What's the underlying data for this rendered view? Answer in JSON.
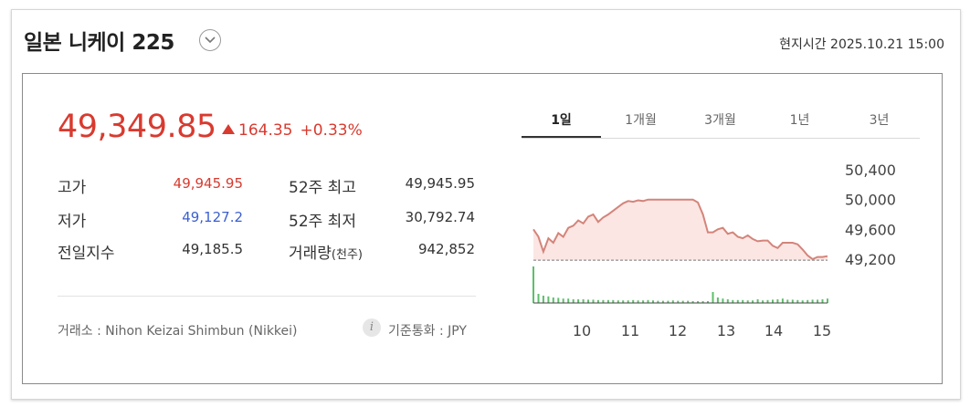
{
  "header": {
    "title": "일본 니케이 225",
    "local_time": "현지시간 2025.10.21 15:00"
  },
  "quote": {
    "price": "49,349.85",
    "change": "164.35",
    "change_pct": "+0.33%",
    "direction": "up",
    "up_color": "#d93a2f",
    "down_color": "#3b5fd1"
  },
  "stats": {
    "high_label": "고가",
    "high_value": "49,945.95",
    "low_label": "저가",
    "low_value": "49,127.2",
    "prev_label": "전일지수",
    "prev_value": "49,185.5",
    "w52_high_label": "52주 최고",
    "w52_high_value": "49,945.95",
    "w52_low_label": "52주 최저",
    "w52_low_value": "30,792.74",
    "volume_label": "거래량",
    "volume_unit": "(천주)",
    "volume_value": "942,852"
  },
  "footer": {
    "exchange": "거래소 : Nihon Keizai Shimbun (Nikkei)",
    "currency": "기준통화 : JPY",
    "info_icon": "i"
  },
  "tabs": [
    "1일",
    "1개월",
    "3개월",
    "1년",
    "3년"
  ],
  "active_tab": 0,
  "chart_data": {
    "type": "area",
    "x_ticks": [
      "10",
      "11",
      "12",
      "13",
      "14",
      "15"
    ],
    "y_ticks": [
      "50,400",
      "50,000",
      "49,600",
      "49,200"
    ],
    "ylim": [
      49200,
      50400
    ],
    "baseline": 49185.5,
    "line_color": "#d4847a",
    "volume_color": "#5cbf6a",
    "series": [
      {
        "values": [
          49600,
          49500,
          49300,
          49480,
          49420,
          49550,
          49500,
          49620,
          49650,
          49720,
          49680,
          49770,
          49800,
          49700,
          49760,
          49800,
          49850,
          49900,
          49950,
          49980,
          49970,
          49990,
          49980,
          50000,
          50000,
          50000,
          50000,
          50000,
          50000,
          50000,
          50000,
          50000,
          50000,
          49960,
          49800,
          49560,
          49560,
          49600,
          49620,
          49540,
          49560,
          49500,
          49480,
          49520,
          49470,
          49440,
          49450,
          49450,
          49380,
          49350,
          49420,
          49420,
          49420,
          49400,
          49330,
          49250,
          49200,
          49230,
          49230,
          49240
        ]
      },
      {
        "values": [
          100,
          25,
          20,
          18,
          15,
          14,
          12,
          12,
          10,
          10,
          10,
          9,
          9,
          8,
          8,
          8,
          8,
          7,
          7,
          7,
          8,
          7,
          7,
          8,
          7,
          6,
          6,
          6,
          7,
          6,
          6,
          6,
          5,
          5,
          5,
          5,
          30,
          15,
          12,
          10,
          8,
          8,
          8,
          7,
          7,
          10,
          7,
          8,
          9,
          10,
          12,
          9,
          9,
          8,
          7,
          8,
          9,
          9,
          10,
          12
        ]
      }
    ]
  }
}
